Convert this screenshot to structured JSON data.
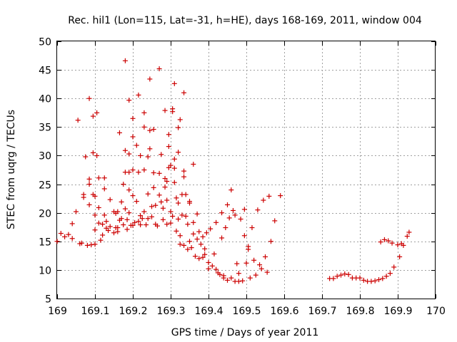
{
  "chart_data": {
    "type": "scatter",
    "title": "Rec. hil1 (Lon=115, Lat=-31, h=HE), days 168-169, 2011, window 004",
    "xlabel": "GPS time / Days of year 2011",
    "ylabel": "STEC from uqrg / TECUs",
    "xlim": [
      169,
      170
    ],
    "ylim": [
      5,
      50
    ],
    "xticks": [
      "169",
      "169.1",
      "169.2",
      "169.3",
      "169.4",
      "169.5",
      "169.6",
      "169.7",
      "169.8",
      "169.9",
      "170"
    ],
    "yticks": [
      "5",
      "10",
      "15",
      "20",
      "25",
      "30",
      "35",
      "40",
      "45",
      "50"
    ],
    "grid": true,
    "marker": "+",
    "color": "#cc0000",
    "series": [
      {
        "points": [
          [
            169.0,
            15.0
          ],
          [
            169.01,
            16.4
          ],
          [
            169.02,
            15.8
          ],
          [
            169.03,
            16.2
          ],
          [
            169.04,
            15.5
          ],
          [
            169.04,
            18.1
          ],
          [
            169.05,
            20.2
          ],
          [
            169.055,
            36.2
          ],
          [
            169.06,
            14.6
          ],
          [
            169.065,
            14.7
          ],
          [
            169.07,
            22.7
          ],
          [
            169.07,
            23.2
          ],
          [
            169.075,
            29.8
          ],
          [
            169.08,
            14.3
          ],
          [
            169.085,
            40.0
          ],
          [
            169.085,
            25.9
          ],
          [
            169.085,
            25.0
          ],
          [
            169.085,
            21.4
          ],
          [
            169.09,
            14.4
          ],
          [
            169.095,
            30.5
          ],
          [
            169.095,
            36.9
          ],
          [
            169.095,
            23.2
          ],
          [
            169.1,
            22.9
          ],
          [
            169.1,
            19.6
          ],
          [
            169.1,
            14.5
          ],
          [
            169.1,
            17.0
          ],
          [
            169.105,
            37.5
          ],
          [
            169.105,
            30.0
          ],
          [
            169.11,
            26.1
          ],
          [
            169.11,
            20.9
          ],
          [
            169.11,
            18.2
          ],
          [
            169.115,
            15.2
          ],
          [
            169.12,
            18.0
          ],
          [
            169.12,
            16.1
          ],
          [
            169.125,
            26.1
          ],
          [
            169.125,
            19.6
          ],
          [
            169.125,
            24.2
          ],
          [
            169.13,
            18.5
          ],
          [
            169.13,
            17.3
          ],
          [
            169.135,
            16.9
          ],
          [
            169.14,
            17.6
          ],
          [
            169.14,
            22.3
          ],
          [
            169.15,
            20.2
          ],
          [
            169.15,
            16.5
          ],
          [
            169.155,
            17.4
          ],
          [
            169.155,
            19.9
          ],
          [
            169.16,
            17.4
          ],
          [
            169.16,
            20.2
          ],
          [
            169.16,
            16.7
          ],
          [
            169.165,
            34.0
          ],
          [
            169.165,
            18.7
          ],
          [
            169.17,
            21.9
          ],
          [
            169.17,
            19.0
          ],
          [
            169.175,
            17.9
          ],
          [
            169.175,
            25.0
          ],
          [
            169.18,
            46.6
          ],
          [
            169.18,
            30.9
          ],
          [
            169.18,
            27.1
          ],
          [
            169.18,
            20.7
          ],
          [
            169.185,
            17.1
          ],
          [
            169.185,
            18.8
          ],
          [
            169.19,
            39.7
          ],
          [
            169.19,
            30.3
          ],
          [
            169.19,
            24.0
          ],
          [
            169.19,
            27.1
          ],
          [
            169.19,
            20.0
          ],
          [
            169.195,
            17.8
          ],
          [
            169.2,
            36.5
          ],
          [
            169.2,
            33.3
          ],
          [
            169.2,
            27.5
          ],
          [
            169.2,
            23.0
          ],
          [
            169.2,
            17.8
          ],
          [
            169.205,
            18.3
          ],
          [
            169.21,
            31.8
          ],
          [
            169.21,
            22.0
          ],
          [
            169.215,
            40.6
          ],
          [
            169.215,
            27.1
          ],
          [
            169.215,
            18.5
          ],
          [
            169.22,
            30.0
          ],
          [
            169.22,
            19.5
          ],
          [
            169.22,
            17.9
          ],
          [
            169.225,
            19.0
          ],
          [
            169.23,
            37.5
          ],
          [
            169.23,
            35.0
          ],
          [
            169.23,
            27.5
          ],
          [
            169.23,
            20.2
          ],
          [
            169.235,
            17.9
          ],
          [
            169.24,
            29.8
          ],
          [
            169.24,
            23.3
          ],
          [
            169.24,
            19.0
          ],
          [
            169.245,
            43.4
          ],
          [
            169.245,
            34.4
          ],
          [
            169.245,
            31.2
          ],
          [
            169.25,
            21.1
          ],
          [
            169.25,
            19.3
          ],
          [
            169.255,
            34.6
          ],
          [
            169.255,
            27.0
          ],
          [
            169.255,
            24.4
          ],
          [
            169.26,
            18.0
          ],
          [
            169.26,
            21.3
          ],
          [
            169.265,
            17.7
          ],
          [
            169.27,
            45.2
          ],
          [
            169.27,
            26.9
          ],
          [
            169.27,
            23.1
          ],
          [
            169.275,
            30.2
          ],
          [
            169.275,
            21.9
          ],
          [
            169.28,
            18.8
          ],
          [
            169.28,
            20.8
          ],
          [
            169.285,
            37.9
          ],
          [
            169.285,
            26.0
          ],
          [
            169.285,
            24.5
          ],
          [
            169.29,
            25.5
          ],
          [
            169.29,
            22.2
          ],
          [
            169.29,
            18.0
          ],
          [
            169.295,
            33.7
          ],
          [
            169.295,
            27.9
          ],
          [
            169.295,
            31.6
          ],
          [
            169.3,
            28.3
          ],
          [
            169.3,
            20.2
          ],
          [
            169.3,
            18.2
          ],
          [
            169.305,
            38.2
          ],
          [
            169.305,
            37.7
          ],
          [
            169.305,
            19.4
          ],
          [
            169.31,
            42.6
          ],
          [
            169.31,
            27.8
          ],
          [
            169.31,
            29.4
          ],
          [
            169.31,
            25.3
          ],
          [
            169.315,
            22.6
          ],
          [
            169.315,
            16.8
          ],
          [
            169.32,
            30.6
          ],
          [
            169.32,
            34.9
          ],
          [
            169.32,
            21.7
          ],
          [
            169.32,
            18.9
          ],
          [
            169.325,
            36.3
          ],
          [
            169.325,
            16.0
          ],
          [
            169.325,
            14.5
          ],
          [
            169.33,
            23.2
          ],
          [
            169.33,
            19.6
          ],
          [
            169.335,
            41.0
          ],
          [
            169.335,
            27.3
          ],
          [
            169.335,
            26.3
          ],
          [
            169.335,
            14.3
          ],
          [
            169.34,
            23.2
          ],
          [
            169.34,
            19.4
          ],
          [
            169.345,
            18.0
          ],
          [
            169.345,
            13.6
          ],
          [
            169.35,
            22.0
          ],
          [
            169.35,
            21.7
          ],
          [
            169.35,
            15.0
          ],
          [
            169.355,
            13.9
          ],
          [
            169.36,
            28.5
          ],
          [
            169.36,
            18.3
          ],
          [
            169.36,
            16.3
          ],
          [
            169.365,
            12.4
          ],
          [
            169.37,
            19.8
          ],
          [
            169.37,
            15.4
          ],
          [
            169.375,
            16.7
          ],
          [
            169.375,
            12.0
          ],
          [
            169.38,
            14.5
          ],
          [
            169.385,
            12.2
          ],
          [
            169.385,
            15.8
          ],
          [
            169.39,
            13.7
          ],
          [
            169.39,
            12.7
          ],
          [
            169.395,
            16.5
          ],
          [
            169.4,
            11.3
          ],
          [
            169.4,
            10.2
          ],
          [
            169.405,
            17.2
          ],
          [
            169.41,
            10.7
          ],
          [
            169.415,
            12.8
          ],
          [
            169.42,
            10.1
          ],
          [
            169.42,
            18.3
          ],
          [
            169.425,
            9.5
          ],
          [
            169.43,
            9.2
          ],
          [
            169.435,
            15.6
          ],
          [
            169.435,
            20.0
          ],
          [
            169.44,
            8.6
          ],
          [
            169.44,
            9.0
          ],
          [
            169.445,
            17.4
          ],
          [
            169.45,
            8.2
          ],
          [
            169.45,
            21.4
          ],
          [
            169.455,
            19.1
          ],
          [
            169.46,
            8.6
          ],
          [
            169.46,
            24.0
          ],
          [
            169.465,
            20.4
          ],
          [
            169.47,
            8.0
          ],
          [
            169.47,
            19.6
          ],
          [
            169.475,
            11.1
          ],
          [
            169.48,
            8.0
          ],
          [
            169.48,
            9.4
          ],
          [
            169.485,
            18.9
          ],
          [
            169.49,
            8.1
          ],
          [
            169.495,
            16.0
          ],
          [
            169.495,
            20.6
          ],
          [
            169.5,
            11.2
          ],
          [
            169.505,
            14.1
          ],
          [
            169.505,
            13.6
          ],
          [
            169.51,
            8.6
          ],
          [
            169.515,
            17.4
          ],
          [
            169.52,
            11.7
          ],
          [
            169.525,
            9.1
          ],
          [
            169.53,
            20.5
          ],
          [
            169.535,
            10.9
          ],
          [
            169.54,
            10.2
          ],
          [
            169.545,
            22.2
          ],
          [
            169.55,
            12.3
          ],
          [
            169.555,
            9.6
          ],
          [
            169.56,
            22.9
          ],
          [
            169.565,
            15.0
          ],
          [
            169.575,
            18.6
          ],
          [
            169.59,
            23.0
          ],
          [
            169.72,
            8.5
          ],
          [
            169.73,
            8.5
          ],
          [
            169.74,
            8.9
          ],
          [
            169.75,
            9.1
          ],
          [
            169.76,
            9.3
          ],
          [
            169.77,
            9.2
          ],
          [
            169.78,
            8.6
          ],
          [
            169.79,
            8.6
          ],
          [
            169.8,
            8.6
          ],
          [
            169.81,
            8.2
          ],
          [
            169.82,
            8.0
          ],
          [
            169.83,
            8.0
          ],
          [
            169.84,
            8.1
          ],
          [
            169.85,
            8.3
          ],
          [
            169.855,
            14.9
          ],
          [
            169.86,
            8.5
          ],
          [
            169.865,
            15.3
          ],
          [
            169.87,
            8.9
          ],
          [
            169.875,
            15.1
          ],
          [
            169.88,
            9.4
          ],
          [
            169.885,
            14.7
          ],
          [
            169.89,
            10.5
          ],
          [
            169.9,
            14.4
          ],
          [
            169.905,
            12.3
          ],
          [
            169.91,
            14.6
          ],
          [
            169.915,
            14.3
          ],
          [
            169.925,
            15.9
          ],
          [
            169.93,
            16.6
          ]
        ]
      }
    ]
  }
}
